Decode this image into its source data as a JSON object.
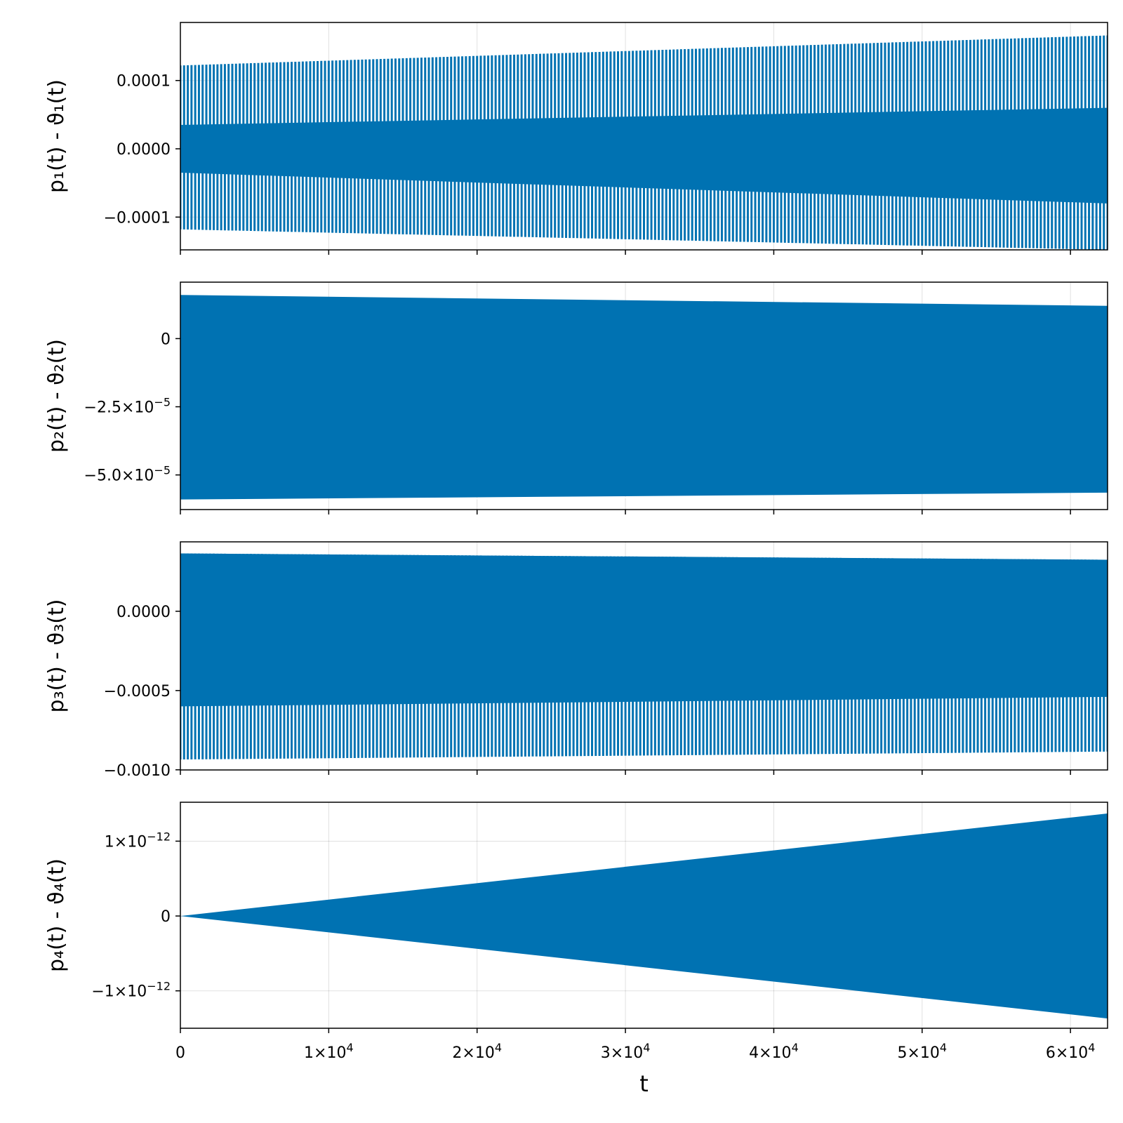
{
  "chart_data": [
    {
      "type": "area",
      "ylabel": "p₁(t) - ϑ₁(t)",
      "xlim": [
        0,
        62500
      ],
      "ylim": [
        -0.000148,
        0.000185
      ],
      "grid": true,
      "xticks": [
        0,
        10000,
        20000,
        30000,
        40000,
        50000,
        60000
      ],
      "xticklabels": [],
      "yticks": [
        -0.0001,
        0.0,
        0.0001
      ],
      "yticklabels": [
        "−0.0001",
        "0.0000",
        "0.0001"
      ],
      "series": [
        {
          "fill_style": "spiky",
          "color": "#0072b2",
          "x": [
            0,
            62500
          ],
          "upper_peak": [
            0.000122,
            0.000166
          ],
          "lower_peak": [
            -0.000118,
            -0.000148
          ],
          "upper_core": [
            3.5e-05,
            6e-05
          ],
          "lower_core": [
            -3.5e-05,
            -8e-05
          ]
        }
      ]
    },
    {
      "type": "area",
      "ylabel": "p₂(t) - ϑ₂(t)",
      "xlim": [
        0,
        62500
      ],
      "ylim": [
        -6.27e-05,
        2.07e-05
      ],
      "grid": true,
      "xticks": [
        0,
        10000,
        20000,
        30000,
        40000,
        50000,
        60000
      ],
      "xticklabels": [],
      "yticks": [
        -5e-05,
        -2.5e-05,
        0
      ],
      "yticklabels": [
        {
          "base": "−5.0×10",
          "exp": "−5"
        },
        {
          "base": "−2.5×10",
          "exp": "−5"
        },
        {
          "base": "0",
          "exp": ""
        }
      ],
      "series": [
        {
          "fill_style": "dense",
          "color": "#0072b2",
          "x": [
            0,
            62500
          ],
          "upper": [
            1.6e-05,
            1.2e-05
          ],
          "lower": [
            -5.9e-05,
            -5.65e-05
          ]
        }
      ]
    },
    {
      "type": "area",
      "ylabel": "p₃(t) - ϑ₃(t)",
      "xlim": [
        0,
        62500
      ],
      "ylim": [
        -0.001001,
        0.000438
      ],
      "grid": true,
      "xticks": [
        0,
        10000,
        20000,
        30000,
        40000,
        50000,
        60000
      ],
      "xticklabels": [],
      "yticks": [
        -0.001,
        -0.0005,
        0.0
      ],
      "yticklabels": [
        "−0.0010",
        "−0.0005",
        "0.0000"
      ],
      "series": [
        {
          "fill_style": "spiky",
          "color": "#0072b2",
          "x": [
            0,
            62500
          ],
          "upper_peak": [
            0.000365,
            0.000325
          ],
          "lower_peak": [
            -0.000935,
            -0.000885
          ],
          "upper_core": [
            0.000365,
            0.000325
          ],
          "lower_core": [
            -0.0006,
            -0.00054
          ]
        }
      ]
    },
    {
      "type": "area",
      "ylabel": "p₄(t) - ϑ₄(t)",
      "xlim": [
        0,
        62500
      ],
      "ylim": [
        -1.5e-12,
        1.52e-12
      ],
      "grid": true,
      "xticks": [
        0,
        10000,
        20000,
        30000,
        40000,
        50000,
        60000
      ],
      "xticklabels": [
        {
          "base": "0",
          "exp": ""
        },
        {
          "base": "1×10",
          "exp": "4"
        },
        {
          "base": "2×10",
          "exp": "4"
        },
        {
          "base": "3×10",
          "exp": "4"
        },
        {
          "base": "4×10",
          "exp": "4"
        },
        {
          "base": "5×10",
          "exp": "4"
        },
        {
          "base": "6×10",
          "exp": "4"
        }
      ],
      "yticks": [
        -1e-12,
        0,
        1e-12
      ],
      "yticklabels": [
        {
          "base": "−1×10",
          "exp": "−12"
        },
        {
          "base": "0",
          "exp": ""
        },
        {
          "base": "1×10",
          "exp": "−12"
        }
      ],
      "xlabel": "t",
      "series": [
        {
          "fill_style": "cone",
          "color": "#0072b2",
          "x": [
            0,
            62500
          ],
          "upper": [
            0,
            1.37e-12
          ],
          "lower": [
            0,
            -1.37e-12
          ]
        }
      ]
    }
  ]
}
